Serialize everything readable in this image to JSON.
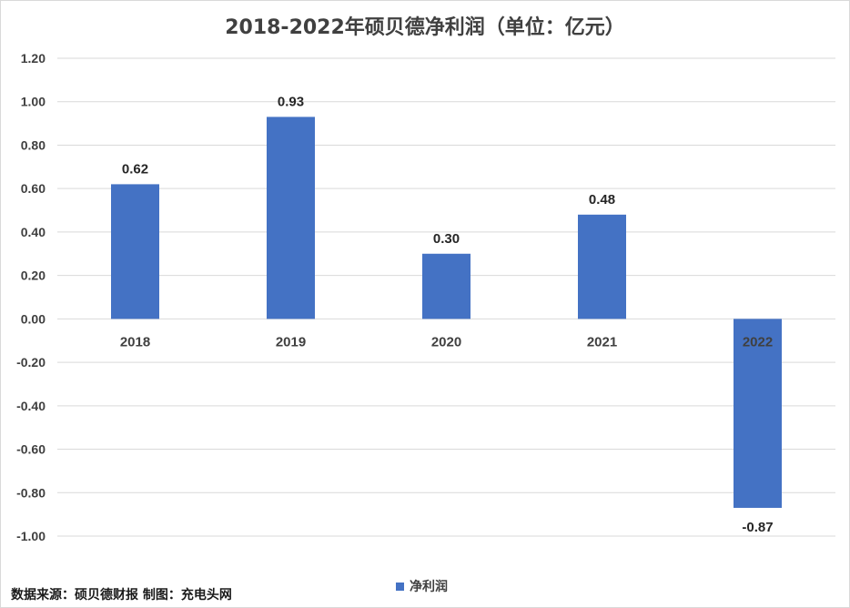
{
  "chart_data": {
    "type": "bar",
    "title": "2018-2022年硕贝德净利润（单位：亿元）",
    "categories": [
      "2018",
      "2019",
      "2020",
      "2021",
      "2022"
    ],
    "series": [
      {
        "name": "净利润",
        "values": [
          0.62,
          0.93,
          0.3,
          0.48,
          -0.87
        ],
        "color": "#4472c4"
      }
    ],
    "data_labels": [
      "0.62",
      "0.93",
      "0.30",
      "0.48",
      "-0.87"
    ],
    "ylim": [
      -1.0,
      1.2
    ],
    "yticks": [
      "1.20",
      "1.00",
      "0.80",
      "0.60",
      "0.40",
      "0.20",
      "0.00",
      "-0.20",
      "-0.40",
      "-0.60",
      "-0.80",
      "-1.00"
    ],
    "grid": true,
    "legend_position": "bottom",
    "xlabel": "",
    "ylabel": ""
  },
  "source_note": "数据来源：硕贝德财报 制图：充电头网"
}
